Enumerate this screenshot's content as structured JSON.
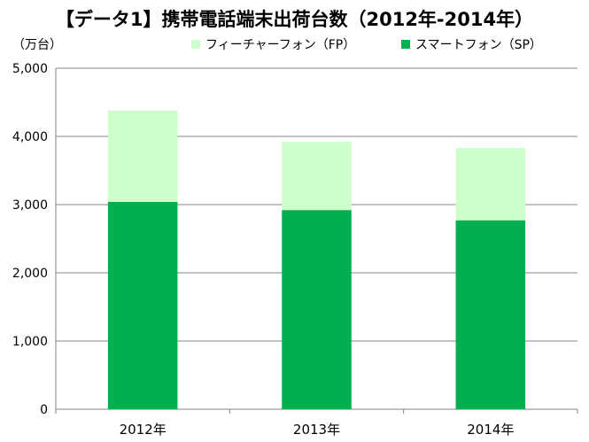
{
  "chart_data": {
    "type": "bar",
    "stacked": true,
    "title": "【データ1】携帯電話端末出荷台数（2012年-2014年）",
    "ylabel": "（万台）",
    "categories": [
      "2012年",
      "2013年",
      "2014年"
    ],
    "series": [
      {
        "name": "スマートフォン（SP）",
        "values": [
          3040,
          2920,
          2770
        ],
        "color": "#00b050"
      },
      {
        "name": "フィーチャーフォン（FP）",
        "values": [
          1340,
          1000,
          1060
        ],
        "color": "#ccffcc"
      }
    ],
    "ylim": [
      0,
      5000
    ],
    "yticks": [
      "0",
      "1,000",
      "2,000",
      "3,000",
      "4,000",
      "5,000"
    ],
    "grid": true,
    "legend": "top"
  }
}
